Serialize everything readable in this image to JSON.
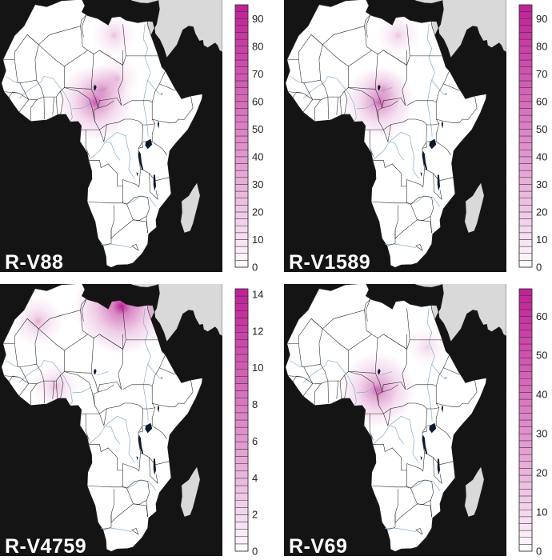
{
  "panels": [
    {
      "label": "R-V88",
      "scale_max": 95,
      "ticks": [
        0,
        10,
        20,
        30,
        40,
        50,
        60,
        70,
        80,
        90
      ],
      "hotspots": [
        {
          "lon": 14.5,
          "lat": 9.5,
          "value": 60
        },
        {
          "lon": 17.0,
          "lat": 13.0,
          "value": 18
        },
        {
          "lon": 22.0,
          "lat": 16.0,
          "value": 14
        },
        {
          "lon": 21.0,
          "lat": 27.5,
          "value": 14
        }
      ]
    },
    {
      "label": "R-V1589",
      "scale_max": 95,
      "ticks": [
        0,
        10,
        20,
        30,
        40,
        50,
        60,
        70,
        80,
        90
      ],
      "hotspots": [
        {
          "lon": 14.5,
          "lat": 9.5,
          "value": 55
        },
        {
          "lon": 16.0,
          "lat": 13.0,
          "value": 14
        },
        {
          "lon": 21.0,
          "lat": 27.5,
          "value": 12
        }
      ]
    },
    {
      "label": "R-V4759",
      "scale_max": 14.3,
      "ticks": [
        0,
        2,
        4,
        6,
        8,
        10,
        12,
        14
      ],
      "hotspots": [
        {
          "lon": 23.5,
          "lat": 31.0,
          "value": 13.5
        },
        {
          "lon": -5.0,
          "lat": 27.0,
          "value": 3.5
        },
        {
          "lon": 1.0,
          "lat": 9.5,
          "value": 3.0
        }
      ]
    },
    {
      "label": "R-V69",
      "scale_max": 67,
      "ticks": [
        0,
        10,
        20,
        30,
        40,
        50,
        60
      ],
      "hotspots": [
        {
          "lon": 14.0,
          "lat": 8.5,
          "value": 42
        },
        {
          "lon": 31.0,
          "lat": 20.0,
          "value": 5
        }
      ]
    }
  ],
  "colors": {
    "background": "#141414",
    "land": "#ffffff",
    "arabia": "#d9d9d9",
    "border": "#222222",
    "river": "#86aec9",
    "lake": "#0c1a2e",
    "heat": "#b4148c",
    "legend_max": "#c01f97",
    "legend_min": "#ffffff"
  }
}
